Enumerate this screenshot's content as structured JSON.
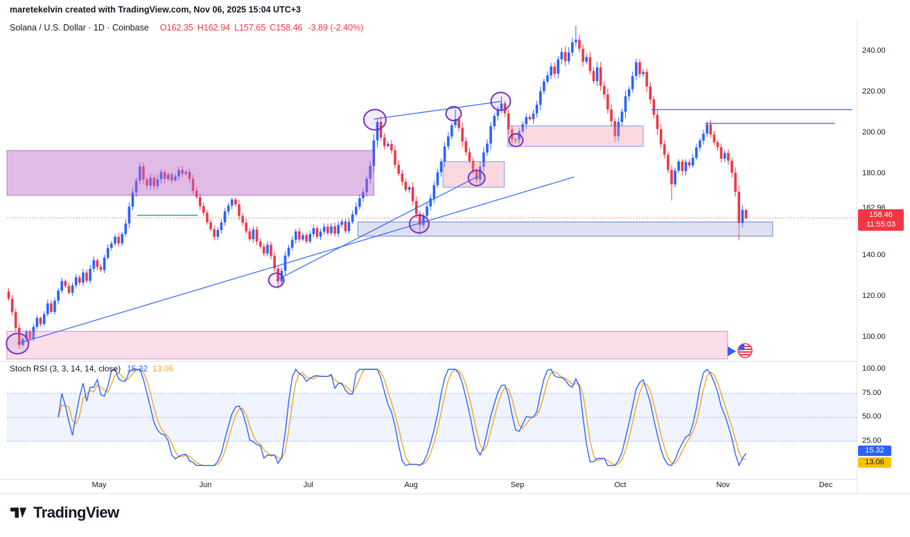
{
  "header": {
    "attribution": "maretekelvin created with TradingView.com, Nov 06, 2025 15:04 UTC+3"
  },
  "legend": {
    "title": "Solana / U.S. Dollar · 1D · Coinbase",
    "ohlc": {
      "o_label": "O",
      "o": "162.35",
      "h_label": "H",
      "h": "162.94",
      "l_label": "L",
      "l": "157.65",
      "c_label": "C",
      "c": "158.46",
      "change": "-3.89 (-2.40%)"
    }
  },
  "price_axis": {
    "ticks": [
      {
        "label": "240.00",
        "value": 240
      },
      {
        "label": "220.00",
        "value": 220
      },
      {
        "label": "200.00",
        "value": 200
      },
      {
        "label": "180.00",
        "value": 180
      },
      {
        "label": "162.96",
        "value": 162.96
      },
      {
        "label": "140.00",
        "value": 140
      },
      {
        "label": "120.00",
        "value": 120
      },
      {
        "label": "100.00",
        "value": 100
      }
    ],
    "last_price": {
      "label": "158.46",
      "countdown": "11:55:03"
    }
  },
  "time_axis": {
    "months": [
      {
        "label": "May",
        "day": 26
      },
      {
        "label": "Jun",
        "day": 56
      },
      {
        "label": "Jul",
        "day": 85
      },
      {
        "label": "Aug",
        "day": 114
      },
      {
        "label": "Sep",
        "day": 144
      },
      {
        "label": "Oct",
        "day": 173
      },
      {
        "label": "Nov",
        "day": 202
      },
      {
        "label": "Dec",
        "day": 231
      }
    ]
  },
  "stoch_panel": {
    "title": "Stoch RSI (3, 3, 14, 14, close)",
    "k_value": "15.32",
    "d_value": "13.06",
    "ticks": [
      {
        "label": "100.00",
        "value": 100
      },
      {
        "label": "75.00",
        "value": 75
      },
      {
        "label": "50.00",
        "value": 50
      },
      {
        "label": "25.00",
        "value": 25
      }
    ],
    "bands": {
      "upper": 75,
      "middle": 50,
      "lower": 25
    }
  },
  "footer": {
    "brand": "TradingView"
  },
  "colors": {
    "up": "#2962ff",
    "down": "#f23645",
    "k_line": "#2962ff",
    "d_line": "#f5a623",
    "trendline": "#2962ff",
    "circle": "#7b2fbe",
    "last_price_bg": "#f23645",
    "k_badge_bg": "#2962ff",
    "d_badge_bg": "#f8c200"
  },
  "chart_data": {
    "type": "candlestick",
    "title": "Solana / U.S. Dollar, 1D, Coinbase",
    "ylim": [
      86,
      257
    ],
    "last_candle": {
      "open": 162.35,
      "high": 162.94,
      "low": 157.65,
      "close": 158.46
    },
    "closes": [
      118,
      112,
      104,
      96,
      100,
      103,
      99,
      105,
      110,
      107,
      112,
      116,
      113,
      118,
      123,
      128,
      125,
      121,
      126,
      130,
      127,
      132,
      128,
      134,
      138,
      135,
      133,
      139,
      143,
      147,
      150,
      146,
      151,
      156,
      163,
      171,
      178,
      183,
      178,
      174,
      178,
      173,
      176,
      180,
      177,
      181,
      177,
      180,
      183,
      179,
      182,
      177,
      172,
      168,
      164,
      160,
      157,
      153,
      150,
      153,
      157,
      161,
      165,
      168,
      164,
      159,
      155,
      151,
      148,
      152,
      148,
      145,
      142,
      145,
      140,
      133,
      127,
      133,
      139,
      144,
      148,
      151,
      147,
      150,
      147,
      150,
      153,
      149,
      152,
      155,
      151,
      154,
      150,
      154,
      157,
      153,
      157,
      160,
      164,
      168,
      172,
      177,
      185,
      196,
      204,
      199,
      193,
      196,
      190,
      185,
      180,
      175,
      171,
      174,
      168,
      161,
      155,
      160,
      164,
      169,
      174,
      180,
      186,
      192,
      198,
      203,
      208,
      202,
      196,
      191,
      186,
      182,
      178,
      184,
      190,
      196,
      202,
      207,
      211,
      215,
      209,
      203,
      198,
      196,
      200,
      205,
      209,
      206,
      211,
      215,
      219,
      224,
      229,
      233,
      229,
      235,
      239,
      235,
      241,
      244,
      247,
      240,
      235,
      239,
      232,
      227,
      231,
      224,
      218,
      211,
      205,
      198,
      204,
      210,
      217,
      223,
      229,
      233,
      228,
      231,
      224,
      217,
      210,
      203,
      196,
      189,
      182,
      176,
      181,
      186,
      181,
      186,
      183,
      188,
      192,
      196,
      200,
      204,
      200,
      196,
      192,
      188,
      191,
      187,
      182,
      170,
      155,
      162,
      158.46
    ],
    "wick_overrides": {
      "76": {
        "low": 124
      },
      "116": {
        "low": 150
      },
      "126": {
        "high": 211.5
      },
      "139": {
        "high": 218
      },
      "160": {
        "high": 252.5
      },
      "187": {
        "low": 167
      },
      "206": {
        "low": 147.5
      }
    },
    "zones": [
      {
        "name": "supply-zone-left",
        "d0": 0,
        "d1": 103.5,
        "p0": 169.5,
        "p1": 191.5,
        "fill": "rgba(186,104,200,0.45)",
        "stroke": "rgba(142,36,170,0.55)"
      },
      {
        "name": "demand-zone-mid",
        "d0": 123,
        "d1": 140.3,
        "p0": 173.5,
        "p1": 186,
        "fill": "rgba(244,143,160,0.35)",
        "stroke": "rgba(41,98,255,0.6)"
      },
      {
        "name": "supply-zone-upper",
        "d0": 141.3,
        "d1": 179.5,
        "p0": 193.5,
        "p1": 203.5,
        "fill": "rgba(244,143,160,0.35)",
        "stroke": "rgba(41,98,255,0.6)"
      },
      {
        "name": "demand-zone-lavender",
        "d0": 99,
        "d1": 216,
        "p0": 149.5,
        "p1": 156.5,
        "fill": "rgba(159,168,218,0.35)",
        "stroke": "rgba(63,81,181,0.7)"
      },
      {
        "name": "demand-zone-bottom",
        "d0": 0,
        "d1": 203.3,
        "p0": 89.5,
        "p1": 103,
        "fill": "rgba(240,150,190,0.3)",
        "stroke": "rgba(156,39,176,0.5)"
      }
    ],
    "trendlines": [
      {
        "d0": 3,
        "p0": 97,
        "d1": 160,
        "p1": 178.5
      },
      {
        "d0": 76,
        "p0": 128,
        "d1": 133,
        "p1": 179
      },
      {
        "d0": 103.5,
        "p0": 206.8,
        "d1": 139.5,
        "p1": 215.5
      }
    ],
    "hlines": [
      {
        "d0": 181.8,
        "d1": 238.5,
        "price": 211.5,
        "color": "#2962ff"
      },
      {
        "d0": 197,
        "d1": 233.6,
        "price": 204.7,
        "color": "#2962ff"
      },
      {
        "d0": 36.7,
        "d1": 53.8,
        "price": 159.8,
        "color": "#089981"
      }
    ],
    "circles": [
      {
        "day": 3,
        "price": 97,
        "r": 16
      },
      {
        "day": 76,
        "price": 128,
        "r": 11
      },
      {
        "day": 103.8,
        "price": 206.5,
        "r": 16
      },
      {
        "day": 116.3,
        "price": 155.5,
        "r": 14
      },
      {
        "day": 126,
        "price": 209.5,
        "r": 11
      },
      {
        "day": 132.5,
        "price": 178,
        "r": 12
      },
      {
        "day": 139.3,
        "price": 215.5,
        "r": 14
      },
      {
        "day": 143.6,
        "price": 196.5,
        "r": 10
      }
    ],
    "price_line": {
      "price": 158.46,
      "color": "#f23645"
    },
    "indicator": {
      "type": "stoch_rsi",
      "params": [
        3,
        3,
        14,
        14,
        "close"
      ],
      "k": 15.32,
      "d": 13.06,
      "bands": [
        75,
        50,
        25
      ]
    }
  }
}
